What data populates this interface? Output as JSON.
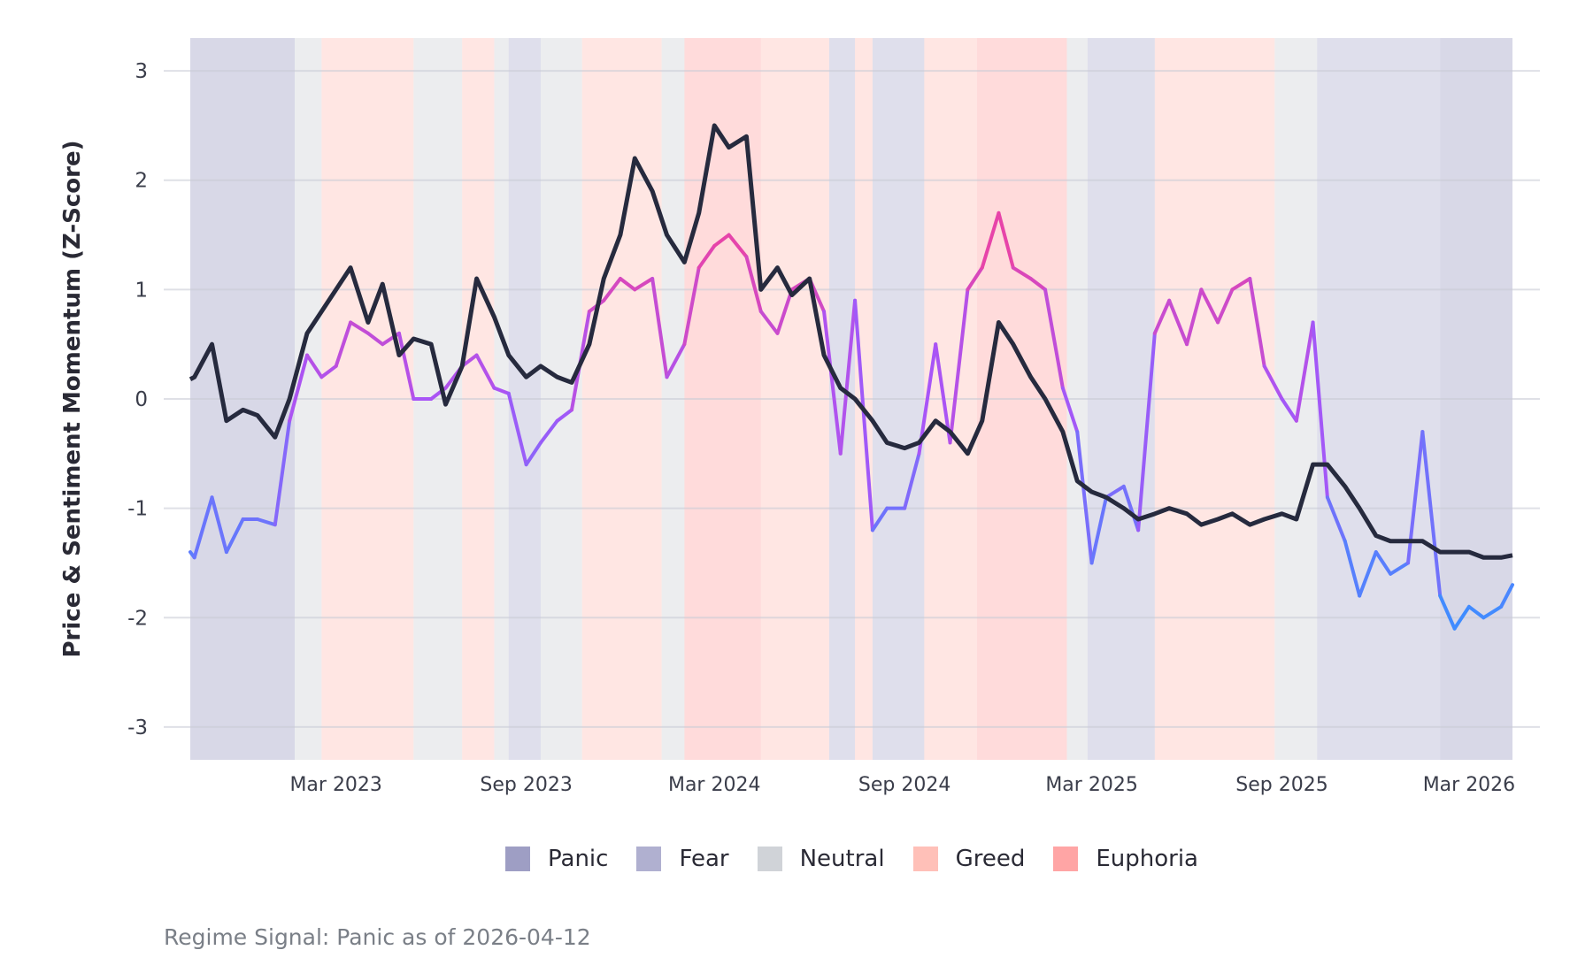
{
  "chart_data": {
    "type": "line",
    "title": "",
    "xlabel": "",
    "ylabel": "Price & Sentiment Momentum (Z-Score)",
    "ylim": [
      -3.3,
      3.3
    ],
    "xlim": [
      "2022-10-11",
      "2026-04-12"
    ],
    "grid": true,
    "legend_placement": "bottom",
    "y_ticks": [
      3,
      2,
      1,
      0,
      -1,
      -2,
      -3
    ],
    "y_tick_labels": [
      "3",
      "2",
      "1",
      "0",
      "-1",
      "-2",
      "-3"
    ],
    "x_ticks": [
      "2023-03-01",
      "2023-09-01",
      "2024-03-01",
      "2024-09-01",
      "2025-03-01",
      "2025-09-01",
      "2026-03-01"
    ],
    "x_tick_labels": [
      "Mar 2023",
      "Sep 2023",
      "Mar 2024",
      "Sep 2024",
      "Mar 2025",
      "Sep 2025",
      "Mar 2026"
    ],
    "regimes": [
      {
        "name": "Panic",
        "color": "#9e9ec4"
      },
      {
        "name": "Fear",
        "color": "#b0b0d0"
      },
      {
        "name": "Neutral",
        "color": "#d0d3d8"
      },
      {
        "name": "Greed",
        "color": "#ffc0b8"
      },
      {
        "name": "Euphoria",
        "color": "#ffa5a5"
      }
    ],
    "regime_bands": [
      [
        "2022-10-11",
        "2023-01-20",
        "Panic"
      ],
      [
        "2023-01-20",
        "2023-02-15",
        "Neutral"
      ],
      [
        "2023-02-15",
        "2023-05-15",
        "Greed"
      ],
      [
        "2023-05-15",
        "2023-07-01",
        "Neutral"
      ],
      [
        "2023-07-01",
        "2023-08-01",
        "Greed"
      ],
      [
        "2023-08-01",
        "2023-08-15",
        "Neutral"
      ],
      [
        "2023-08-15",
        "2023-09-15",
        "Fear"
      ],
      [
        "2023-09-15",
        "2023-10-25",
        "Neutral"
      ],
      [
        "2023-10-25",
        "2024-01-10",
        "Greed"
      ],
      [
        "2024-01-10",
        "2024-02-01",
        "Neutral"
      ],
      [
        "2024-02-01",
        "2024-04-15",
        "Euphoria"
      ],
      [
        "2024-04-15",
        "2024-06-20",
        "Greed"
      ],
      [
        "2024-06-20",
        "2024-07-15",
        "Fear"
      ],
      [
        "2024-07-15",
        "2024-08-01",
        "Greed"
      ],
      [
        "2024-08-01",
        "2024-09-20",
        "Fear"
      ],
      [
        "2024-09-20",
        "2024-11-10",
        "Greed"
      ],
      [
        "2024-11-10",
        "2025-02-05",
        "Euphoria"
      ],
      [
        "2025-02-05",
        "2025-02-25",
        "Neutral"
      ],
      [
        "2025-02-25",
        "2025-05-01",
        "Fear"
      ],
      [
        "2025-05-01",
        "2025-08-25",
        "Greed"
      ],
      [
        "2025-08-25",
        "2025-10-05",
        "Neutral"
      ],
      [
        "2025-10-05",
        "2026-02-01",
        "Fear"
      ],
      [
        "2026-02-01",
        "2026-04-12",
        "Panic"
      ]
    ],
    "x": [
      "2022-10-11",
      "2022-10-15",
      "2022-11-01",
      "2022-11-15",
      "2022-12-01",
      "2022-12-15",
      "2023-01-01",
      "2023-01-15",
      "2023-02-01",
      "2023-02-15",
      "2023-03-01",
      "2023-03-15",
      "2023-04-01",
      "2023-04-15",
      "2023-05-01",
      "2023-05-15",
      "2023-06-01",
      "2023-06-15",
      "2023-07-01",
      "2023-07-15",
      "2023-08-01",
      "2023-08-15",
      "2023-09-01",
      "2023-09-15",
      "2023-10-01",
      "2023-10-15",
      "2023-11-01",
      "2023-11-15",
      "2023-12-01",
      "2023-12-15",
      "2024-01-01",
      "2024-01-15",
      "2024-02-01",
      "2024-02-15",
      "2024-03-01",
      "2024-03-15",
      "2024-04-01",
      "2024-04-15",
      "2024-05-01",
      "2024-05-15",
      "2024-06-01",
      "2024-06-15",
      "2024-07-01",
      "2024-07-15",
      "2024-08-01",
      "2024-08-15",
      "2024-09-01",
      "2024-09-15",
      "2024-10-01",
      "2024-10-15",
      "2024-11-01",
      "2024-11-15",
      "2024-12-01",
      "2024-12-15",
      "2025-01-01",
      "2025-01-15",
      "2025-02-01",
      "2025-02-15",
      "2025-03-01",
      "2025-03-15",
      "2025-04-01",
      "2025-04-15",
      "2025-05-01",
      "2025-05-15",
      "2025-06-01",
      "2025-06-15",
      "2025-07-01",
      "2025-07-15",
      "2025-08-01",
      "2025-08-15",
      "2025-09-01",
      "2025-09-15",
      "2025-10-01",
      "2025-10-15",
      "2025-11-01",
      "2025-11-15",
      "2025-12-01",
      "2025-12-15",
      "2026-01-01",
      "2026-01-15",
      "2026-02-01",
      "2026-02-15",
      "2026-03-01",
      "2026-03-15",
      "2026-04-01",
      "2026-04-12"
    ],
    "series": [
      {
        "role": "price",
        "color": "#262a3e",
        "values": [
          0.18,
          0.2,
          0.5,
          -0.2,
          -0.1,
          -0.15,
          -0.35,
          0.0,
          0.6,
          0.8,
          1.0,
          1.2,
          0.7,
          1.05,
          0.4,
          0.55,
          0.5,
          -0.05,
          0.3,
          1.1,
          0.75,
          0.4,
          0.2,
          0.3,
          0.2,
          0.15,
          0.5,
          1.1,
          1.5,
          2.2,
          1.9,
          1.5,
          1.25,
          1.7,
          2.5,
          2.3,
          2.4,
          1.0,
          1.2,
          0.95,
          1.1,
          0.4,
          0.1,
          0.0,
          -0.2,
          -0.4,
          -0.45,
          -0.4,
          -0.2,
          -0.3,
          -0.5,
          -0.2,
          0.7,
          0.5,
          0.2,
          0.0,
          -0.3,
          -0.75,
          -0.85,
          -0.9,
          -1.0,
          -1.1,
          -1.05,
          -1.0,
          -1.05,
          -1.15,
          -1.1,
          -1.05,
          -1.15,
          -1.1,
          -1.05,
          -1.1,
          -0.6,
          -0.6,
          -0.8,
          -1.0,
          -1.25,
          -1.3,
          -1.3,
          -1.3,
          -1.4,
          -1.4,
          -1.4,
          -1.45,
          -1.45,
          -1.43
        ]
      },
      {
        "role": "sentiment",
        "color_scale": [
          "#3f8cff",
          "#a855f7",
          "#ff3d8b"
        ],
        "values": [
          -1.4,
          -1.45,
          -0.9,
          -1.4,
          -1.1,
          -1.1,
          -1.15,
          -0.2,
          0.4,
          0.2,
          0.3,
          0.7,
          0.6,
          0.5,
          0.6,
          0.0,
          0.0,
          0.1,
          0.3,
          0.4,
          0.1,
          0.05,
          -0.6,
          -0.4,
          -0.2,
          -0.1,
          0.8,
          0.9,
          1.1,
          1.0,
          1.1,
          0.2,
          0.5,
          1.2,
          1.4,
          1.5,
          1.3,
          0.8,
          0.6,
          1.0,
          1.1,
          0.8,
          -0.5,
          0.9,
          -1.2,
          -1.0,
          -1.0,
          -0.5,
          0.5,
          -0.4,
          1.0,
          1.2,
          1.7,
          1.2,
          1.1,
          1.0,
          0.1,
          -0.3,
          -1.5,
          -0.9,
          -0.8,
          -1.2,
          0.6,
          0.9,
          0.5,
          1.0,
          0.7,
          1.0,
          1.1,
          0.3,
          0.0,
          -0.2,
          0.7,
          -0.9,
          -1.3,
          -1.8,
          -1.4,
          -1.6,
          -1.5,
          -0.3,
          -1.8,
          -2.1,
          -1.9,
          -2.0,
          -1.9,
          -1.7
        ]
      }
    ]
  },
  "footer": "Regime Signal: Panic as of 2026-04-12"
}
